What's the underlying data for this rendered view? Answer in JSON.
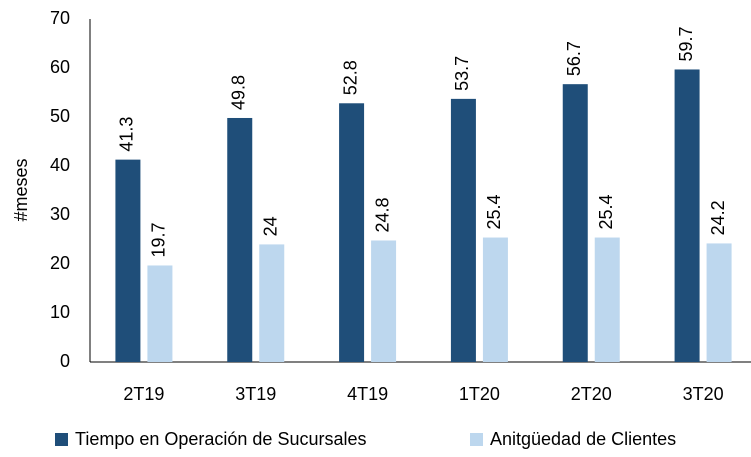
{
  "chart_data": {
    "type": "bar",
    "y_label": "#meses",
    "categories": [
      "2T19",
      "3T19",
      "4T19",
      "1T20",
      "2T20",
      "3T20"
    ],
    "series": [
      {
        "name": "Tiempo en Operación de Sucursales",
        "color": "#1f4e79",
        "values": [
          41.3,
          49.8,
          52.8,
          53.7,
          56.7,
          59.7
        ]
      },
      {
        "name": "Anitgüedad de Clientes",
        "color": "#bdd7ee",
        "values": [
          19.7,
          24,
          24.8,
          25.4,
          25.4,
          24.2
        ]
      }
    ],
    "ylim": [
      0,
      70
    ],
    "yticks": [
      0,
      10,
      20,
      30,
      40,
      50,
      60,
      70
    ],
    "grid": false,
    "legend": "bottom"
  }
}
